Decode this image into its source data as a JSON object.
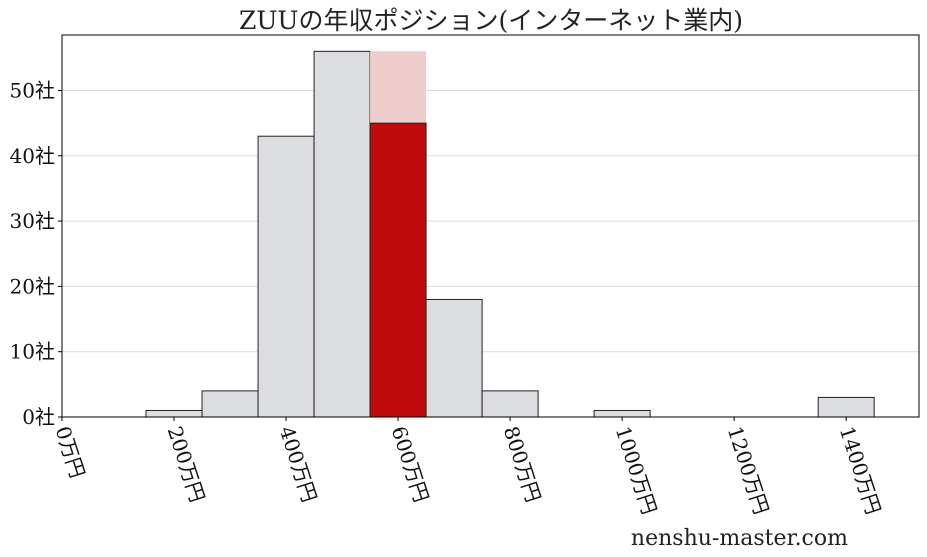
{
  "chart_data": {
    "type": "bar",
    "title": "ZUUの年収ポジション(インターネット業内)",
    "xlabel": "",
    "ylabel": "",
    "bin_width": 100,
    "bins": [
      {
        "start": 150,
        "count": 1
      },
      {
        "start": 250,
        "count": 4
      },
      {
        "start": 350,
        "count": 43
      },
      {
        "start": 450,
        "count": 56
      },
      {
        "start": 550,
        "count": 45,
        "highlight": true,
        "total": 56
      },
      {
        "start": 650,
        "count": 18
      },
      {
        "start": 750,
        "count": 4
      },
      {
        "start": 950,
        "count": 1
      },
      {
        "start": 1350,
        "count": 3
      }
    ],
    "xlim": [
      0,
      1530
    ],
    "ylim": [
      0,
      58.5
    ],
    "xticks": [
      0,
      200,
      400,
      600,
      800,
      1000,
      1200,
      1400
    ],
    "xtick_labels": [
      "0万円",
      "200万円",
      "400万円",
      "600万円",
      "800万円",
      "1000万円",
      "1200万円",
      "1400万円"
    ],
    "yticks": [
      0,
      10,
      20,
      30,
      40,
      50
    ],
    "ytick_labels": [
      "0社",
      "10社",
      "20社",
      "30社",
      "40社",
      "50社"
    ],
    "grid": "horizontal",
    "colors": {
      "bar": "#dcdde0",
      "highlight": "#bf0b0b",
      "highlight_remainder": "#f0cdcd",
      "grid": "#dcdcdc"
    }
  },
  "watermark": "nenshu-master.com"
}
